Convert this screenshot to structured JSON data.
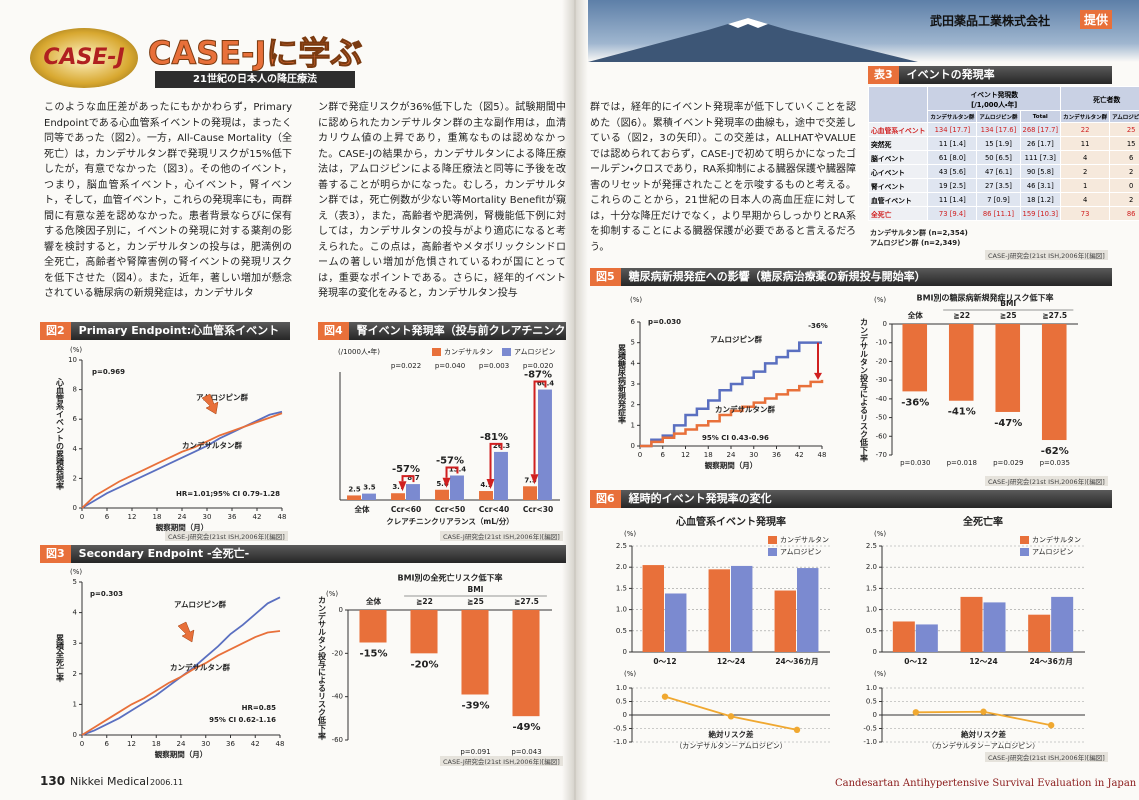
{
  "header": {
    "logo": "CASE-J",
    "title": "CASE-Jに学ぶ",
    "subtitle": "21世紀の日本人の降圧療法",
    "sponsor": "武田薬品工業株式会社",
    "sponsor_tag": "提供"
  },
  "body": {
    "col1": "このような血圧差があったにもかかわらず，Primary Endpointである心血管系イベントの発現は，まったく同等であった（図2）。一方，All-Cause Mortality（全死亡）は，カンデサルタン群で発現リスクが15%低下したが，有意でなかった（図3）。その他のイベント，つまり，脳血管系イベント，心イベント，腎イベント，そして，血管イベント，これらの発現率にも，両群間に有意な差を認めなかった。患者背景ならびに保有する危険因子別に，イベントの発現に対する薬剤の影響を検討すると，カンデサルタンの投与は，肥満例の全死亡，高齢者や腎障害例の腎イベントの発現リスクを低下させた（図4）。また，近年，著しい増加が懸念されている糖尿病の新規発症は，カンデサルタ",
    "col2": "ン群で発症リスクが36%低下した（図5）。試験期間中に認められたカンデサルタン群の主な副作用は，血清カリウム値の上昇であり，重篤なものは認めなかった。CASE-Jの結果から，カンデサルタンによる降圧療法は，アムロジピンによる降圧療法と同等に予後を改善することが明らかになった。むしろ，カンデサルタン群では，死亡例数が少ない等Mortality Benefitが窺え（表3），また，高齢者や肥満例，腎機能低下例に対しては，カンデサルタンの投与がより適応になると考えられた。この点は，高齢者やメタボリックシンドロームの著しい増加が危惧されているわが国にとっては，重要なポイントである。さらに，経年的イベント発現率の変化をみると，カンデサルタン投与",
    "col3": "群では，経年的にイベント発現率が低下していくことを認めた（図6）。累積イベント発現率の曲線も，途中で交差している（図2，3の矢印）。この交差は，ALLHATやVALUEでは認められておらず，CASE-Jで初めて明らかになったゴールデン・クロスであり，RA系抑制による臓器保護や臓器障害のリセットが発揮されたことを示唆するものと考える。これらのことから，21世紀の日本人の高血圧症に対しては，十分な降圧だけでなく，より早期からしっかりとRA系を抑制することによる臓器保護が必要であると言えるだろう。"
  },
  "footer": {
    "page": "130",
    "magazine": "Nikkei Medical",
    "issue": "2006.11",
    "series_name": "Candesartan Antihypertensive Survival Evaluation in Japan"
  },
  "figures": [
    {
      "label": "図2",
      "title": "Primary Endpoint:心血管系イベント",
      "source": "CASE-J研究会(21st ISH,2006年)[編図]"
    },
    {
      "label": "図4",
      "title": "腎イベント発現率（投与前クレアチニンクリアランス別）",
      "source": "CASE-J研究会(21st ISH,2006年)[編図]"
    },
    {
      "label": "図3",
      "title": "Secondary Endpoint -全死亡-",
      "source": "CASE-J研究会(21st ISH,2006年)[編図]"
    },
    {
      "label": "図5",
      "title": "糖尿病新規発症への影響（糖尿病治療薬の新規投与開始率）",
      "source": "CASE-J研究会(21st ISH,2006年)[編図]"
    },
    {
      "label": "図6",
      "title": "経時的イベント発現率の変化",
      "source": "CASE-J研究会(21st ISH,2006年)[編図]"
    }
  ],
  "table": {
    "label": "表3",
    "title": "イベントの発現率",
    "head": {
      "events": "イベント発現数",
      "events_unit": "[/1,000人・年]",
      "deaths": "死亡者数",
      "cols": [
        "カンデサルタン群",
        "アムロジピン群",
        "Total",
        "カンデサルタン群",
        "アムロジピン群"
      ]
    },
    "rows": [
      [
        "心血管系イベント",
        "134 [17.7]",
        "134 [17.6]",
        "268 [17.7]",
        "22",
        "25"
      ],
      [
        "突然死",
        "11 [1.4]",
        "15 [1.9]",
        "26 [1.7]",
        "11",
        "15"
      ],
      [
        "脳イベント",
        "61 [8.0]",
        "50 [6.5]",
        "111 [7.3]",
        "4",
        "6"
      ],
      [
        "心イベント",
        "43 [5.6]",
        "47 [6.1]",
        "90 [5.8]",
        "2",
        "2"
      ],
      [
        "腎イベント",
        "19 [2.5]",
        "27 [3.5]",
        "46 [3.1]",
        "1",
        "0"
      ],
      [
        "血管イベント",
        "11 [1.4]",
        "7 [0.9]",
        "18 [1.2]",
        "4",
        "2"
      ],
      [
        "全死亡",
        "73 [9.4]",
        "86 [11.1]",
        "159 [10.3]",
        "73",
        "86"
      ]
    ],
    "notes": [
      "カンデサルタン群 (n=2,354)",
      "アムロジピン群 (n=2,349)"
    ],
    "source": "CASE-J研究会(21st ISH,2006年)[編図]"
  },
  "chart_data": [
    {
      "type": "line",
      "unit": "(%)",
      "ylabel": "心血管系イベントの累積発現率",
      "xlabel": "観察期間（月）",
      "notes": [
        "p=0.969",
        "HR=1.01;95% CI 0.79-1.28"
      ],
      "x": [
        0,
        3,
        6,
        9,
        12,
        15,
        18,
        21,
        24,
        27,
        30,
        33,
        36,
        39,
        42,
        45,
        48
      ],
      "xlim": [
        0,
        48
      ],
      "xticks": [
        0,
        6,
        12,
        18,
        24,
        30,
        36,
        42,
        48
      ],
      "ylim": [
        0,
        10
      ],
      "yticks": [
        0,
        2,
        4,
        6,
        8,
        10
      ],
      "series": [
        {
          "name": "アムロジピン群",
          "color": "#5a6fc0",
          "values": [
            0,
            0.5,
            1.0,
            1.4,
            1.8,
            2.2,
            2.6,
            3.0,
            3.4,
            3.8,
            4.2,
            4.7,
            5.1,
            5.5,
            5.9,
            6.3,
            6.5
          ]
        },
        {
          "name": "カンデサルタン群",
          "color": "#e8703a",
          "values": [
            0,
            0.8,
            1.3,
            1.8,
            2.2,
            2.6,
            3.0,
            3.4,
            3.8,
            4.1,
            4.5,
            4.9,
            5.2,
            5.5,
            5.8,
            6.1,
            6.4
          ]
        }
      ]
    },
    {
      "type": "bar",
      "unit": "(/1000人・年)",
      "xlabel": "クレアチニンクリアランス（mL/分）",
      "legend": true,
      "categories": [
        "全体",
        "Ccr<60",
        "Ccr<50",
        "Ccr<40",
        "Ccr<30"
      ],
      "p_values": [
        null,
        "p=0.022",
        "p=0.040",
        "p=0.003",
        "p=0.020"
      ],
      "reductions": [
        null,
        "-57%",
        "-57%",
        "-81%",
        "-87%"
      ],
      "ylim": [
        0,
        70
      ],
      "value_labels_shown": true,
      "series": [
        {
          "name": "カンデサルタン",
          "color": "#e8703a",
          "values": [
            2.5,
            3.7,
            5.6,
            4.9,
            7.5
          ]
        },
        {
          "name": "アムロジピン",
          "color": "#7b8ad0",
          "values": [
            3.5,
            8.7,
            13.4,
            26.3,
            60.4
          ]
        }
      ]
    },
    {
      "type": "line",
      "unit": "(%)",
      "ylabel": "累積全死亡率",
      "xlabel": "観察期間（月）",
      "notes": [
        "p=0.303",
        "HR=0.85",
        "95% CI 0.62-1.16"
      ],
      "x": [
        0,
        3,
        6,
        9,
        12,
        15,
        18,
        21,
        24,
        27,
        30,
        33,
        36,
        39,
        42,
        45,
        48
      ],
      "xlim": [
        0,
        48
      ],
      "xticks": [
        0,
        6,
        12,
        18,
        24,
        30,
        36,
        42,
        48
      ],
      "ylim": [
        0,
        5
      ],
      "yticks": [
        0,
        1,
        2,
        3,
        4,
        5
      ],
      "series": [
        {
          "name": "アムロジピン群",
          "color": "#5a6fc0",
          "values": [
            0,
            0.15,
            0.35,
            0.55,
            0.8,
            1.05,
            1.3,
            1.6,
            1.9,
            2.2,
            2.55,
            2.9,
            3.3,
            3.6,
            3.95,
            4.3,
            4.5
          ]
        },
        {
          "name": "カンデサルタン群",
          "color": "#e8703a",
          "values": [
            0,
            0.25,
            0.5,
            0.75,
            1.0,
            1.2,
            1.45,
            1.7,
            1.9,
            2.15,
            2.35,
            2.6,
            2.8,
            3.0,
            3.2,
            3.35,
            3.4
          ]
        }
      ]
    },
    {
      "type": "bar",
      "title": "BMI別の全死亡リスク低下率",
      "unit": "(%)",
      "ylabel": "カンデサルタン投与によるリスク低下率",
      "category_group": "BMI",
      "categories": [
        "全体",
        "≧22",
        "≧25",
        "≧27.5"
      ],
      "values": [
        -15,
        -20,
        -39,
        -49
      ],
      "value_labels": [
        "-15%",
        "-20%",
        "-39%",
        "-49%"
      ],
      "color": "#e8703a",
      "p_values": [
        null,
        null,
        "p=0.091",
        "p=0.043"
      ],
      "ylim": [
        -60,
        0
      ],
      "yticks": [
        0,
        -20,
        -40,
        -60
      ]
    },
    {
      "type": "line",
      "step": true,
      "unit": "(%)",
      "ylabel": "累積糖尿病新規発症率",
      "xlabel": "観察期間（月）",
      "notes": [
        "p=0.030",
        "-36%",
        "95% CI 0.43-0.96"
      ],
      "x": [
        0,
        3,
        6,
        9,
        12,
        15,
        18,
        21,
        24,
        27,
        30,
        33,
        36,
        39,
        42,
        45,
        48
      ],
      "xlim": [
        0,
        48
      ],
      "xticks": [
        0,
        6,
        12,
        18,
        24,
        30,
        36,
        42,
        48
      ],
      "ylim": [
        0,
        6
      ],
      "yticks": [
        0,
        1,
        2,
        3,
        4,
        5,
        6
      ],
      "series": [
        {
          "name": "アムロジピン群",
          "color": "#5a6fc0",
          "values": [
            0,
            0.3,
            0.5,
            1.0,
            1.5,
            1.8,
            2.2,
            2.7,
            3.0,
            3.3,
            3.6,
            4.0,
            4.3,
            4.6,
            5.0,
            5.0,
            5.0
          ]
        },
        {
          "name": "カンデサルタン群",
          "color": "#e8703a",
          "values": [
            0,
            0.2,
            0.4,
            0.6,
            0.8,
            1.0,
            1.2,
            1.5,
            1.7,
            1.9,
            2.1,
            2.3,
            2.5,
            2.7,
            2.9,
            3.1,
            3.2
          ]
        }
      ]
    },
    {
      "type": "bar",
      "title": "BMI別の糖尿病新規発症リスク低下率",
      "unit": "(%)",
      "ylabel": "カンデサルタン投与によるリスク低下率",
      "category_group": "BMI",
      "categories": [
        "全体",
        "≧22",
        "≧25",
        "≧27.5"
      ],
      "values": [
        -36,
        -41,
        -47,
        -62
      ],
      "value_labels": [
        "-36%",
        "-41%",
        "-47%",
        "-62%"
      ],
      "color": "#e8703a",
      "p_values": [
        "p=0.030",
        "p=0.018",
        "p=0.029",
        "p=0.035"
      ],
      "ylim": [
        -70,
        0
      ],
      "yticks": [
        0,
        -10,
        -20,
        -30,
        -40,
        -50,
        -60,
        -70
      ]
    },
    {
      "type": "bar",
      "title": "心血管系イベント発現率",
      "unit": "(%)",
      "legend": true,
      "grid": true,
      "categories": [
        "0〜12",
        "12〜24",
        "24〜36カ月"
      ],
      "ylim": [
        0,
        2.5
      ],
      "yticks": [
        0,
        0.5,
        {
          "value": 1,
          "label": "1.0"
        },
        1.5,
        {
          "value": 2,
          "label": "2.0"
        },
        2.5
      ],
      "series": [
        {
          "name": "カンデサルタン",
          "color": "#e8703a",
          "values": [
            2.05,
            1.95,
            1.45
          ]
        },
        {
          "name": "アムロジピン",
          "color": "#7b8ad0",
          "values": [
            1.38,
            2.03,
            1.98
          ]
        }
      ]
    },
    {
      "type": "line",
      "markers": true,
      "unit": "(%)",
      "xlabel": "絶対リスク差",
      "xlabel_note": "（カンデサルタン－アムロジピン）",
      "grid": true,
      "values": [
        0.68,
        -0.05,
        -0.55
      ],
      "color": "#f0a830",
      "ylim": [
        -1,
        1
      ],
      "yticks": [
        {
          "value": 1,
          "label": "1.0"
        },
        0.5,
        0,
        -0.5,
        {
          "value": -1,
          "label": "-1.0"
        }
      ]
    },
    {
      "type": "bar",
      "title": "全死亡率",
      "unit": "(%)",
      "legend": true,
      "grid": true,
      "categories": [
        "0〜12",
        "12〜24",
        "24〜36カ月"
      ],
      "ylim": [
        0,
        2.5
      ],
      "yticks": [
        0,
        0.5,
        {
          "value": 1,
          "label": "1.0"
        },
        1.5,
        {
          "value": 2,
          "label": "2.0"
        },
        2.5
      ],
      "series": [
        {
          "name": "カンデサルタン",
          "color": "#e8703a",
          "values": [
            0.72,
            1.3,
            0.88
          ]
        },
        {
          "name": "アムロジピン",
          "color": "#7b8ad0",
          "values": [
            0.65,
            1.17,
            1.3
          ]
        }
      ]
    },
    {
      "type": "line",
      "markers": true,
      "unit": "(%)",
      "xlabel": "絶対リスク差",
      "xlabel_note": "（カンデサルタン－アムロジピン）",
      "grid": true,
      "values": [
        0.1,
        0.12,
        -0.38
      ],
      "color": "#f0a830",
      "ylim": [
        -1,
        1
      ],
      "yticks": [
        {
          "value": 1,
          "label": "1.0"
        },
        0.5,
        0,
        -0.5,
        {
          "value": -1,
          "label": "-1.0"
        }
      ]
    }
  ]
}
